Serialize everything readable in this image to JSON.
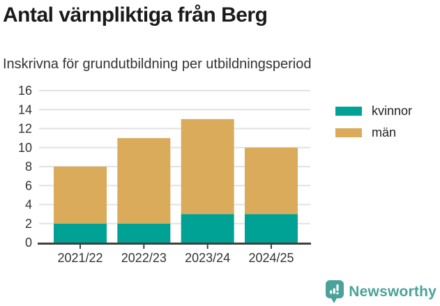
{
  "header": {
    "title": "Antal värnpliktiga från Berg",
    "subtitle": "Inskrivna för grundutbildning per utbildningsperiod"
  },
  "chart_data": {
    "type": "bar",
    "stacked": true,
    "title": "Antal värnpliktiga från Berg",
    "subtitle": "Inskrivna för grundutbildning per utbildningsperiod",
    "categories": [
      "2021/22",
      "2022/23",
      "2023/24",
      "2024/25"
    ],
    "series": [
      {
        "name": "kvinnor",
        "color": "#00a296",
        "values": [
          2,
          2,
          3,
          3
        ]
      },
      {
        "name": "män",
        "color": "#d9ab5a",
        "values": [
          6,
          9,
          10,
          7
        ]
      }
    ],
    "stack_totals": [
      8,
      11,
      13,
      10
    ],
    "xlabel": "",
    "ylabel": "",
    "ylim": [
      0,
      16
    ],
    "ytick_step": 2,
    "grid": true,
    "legend_position": "right-top"
  },
  "branding": {
    "text": "Newsworthy",
    "color": "#4aa29a",
    "icon": "newsworthy-bar-chart-bubble-icon"
  },
  "colors": {
    "title_text": "#1a1a1a",
    "body_text": "#333333",
    "axis": "#404040",
    "gridline": "#e2e2e2",
    "background": "#ffffff"
  }
}
